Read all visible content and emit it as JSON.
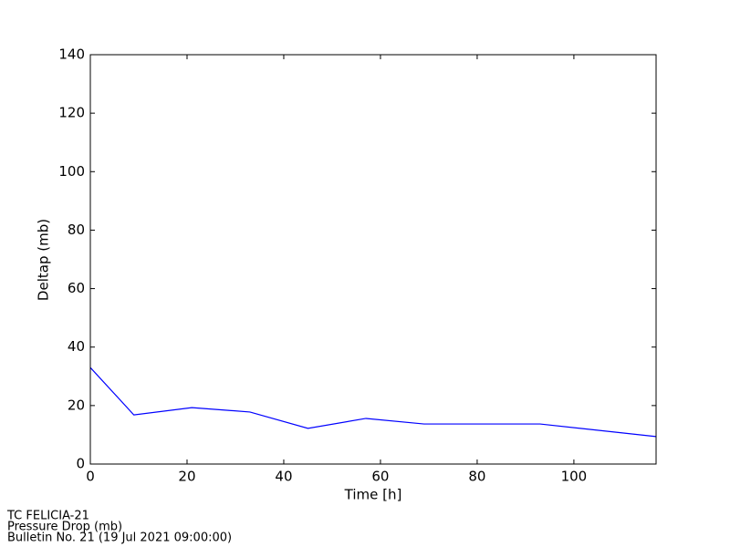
{
  "chart_data": {
    "type": "line",
    "x_label": "Time [h]",
    "y_label": "Deltap (mb)",
    "x": [
      0,
      9,
      21,
      33,
      45,
      57,
      69,
      93,
      117
    ],
    "series": [
      {
        "name": "Deltap",
        "color": "#0000ff",
        "values": [
          33,
          16.8,
          19.3,
          17.8,
          12.2,
          15.6,
          13.7,
          13.7,
          9.4
        ]
      }
    ],
    "xlim": [
      0,
      117
    ],
    "ylim": [
      0,
      140
    ],
    "xticks": [
      0,
      20,
      40,
      60,
      80,
      100
    ],
    "yticks": [
      0,
      20,
      40,
      60,
      80,
      100,
      120,
      140
    ],
    "grid": false,
    "annotations": [
      "TC FELICIA-21",
      "Pressure Drop (mb)",
      "Bulletin No. 21 (19 Jul 2021  09:00:00)"
    ]
  }
}
